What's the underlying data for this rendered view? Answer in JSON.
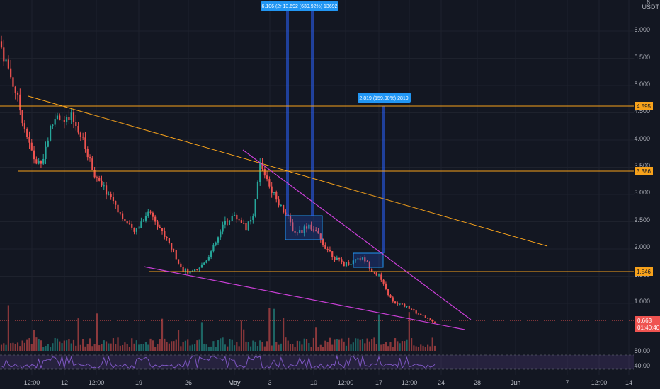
{
  "chart": {
    "currency": "USDT",
    "y_axis_ticks": [
      "6",
      "6.000",
      "5.500",
      "5.000",
      "4.500",
      "4.000",
      "3.500",
      "3.000",
      "2.500",
      "2.000",
      "1.500",
      "1.000"
    ],
    "x_axis_ticks": [
      "12:00",
      "12",
      "12:00",
      "19",
      "26",
      "May",
      "3",
      "10",
      "12:00",
      "17",
      "12:00",
      "24",
      "28",
      "Jun",
      "7",
      "12:00",
      "14"
    ],
    "rsi_ticks": [
      "80.00",
      "40.00"
    ],
    "price_badges": {
      "upper_resistance": "4.595",
      "mid_resistance": "3.386",
      "support": "1.546",
      "current_price": "0.663",
      "countdown": "01:40:40"
    },
    "measure_labels": {
      "big": "6.106 (2r 13.692 (639.92%) 13692",
      "small": "2.819 (159.90%) 2819"
    },
    "colors": {
      "background": "#131722",
      "up": "#26a69a",
      "down": "#ef5350",
      "horizontal_lines": "#f7a21b",
      "wedge": "#c93fd6",
      "measure": "#2962ff",
      "rsi": "#7e57c2"
    }
  },
  "chart_data": {
    "type": "candlestick",
    "series": [
      {
        "values": [
          5.7,
          5.3,
          4.9,
          4.4,
          3.9,
          3.55,
          3.7,
          4.2,
          4.5,
          4.3,
          4.4,
          4.2,
          3.85,
          3.5,
          3.2,
          3.05,
          2.9,
          2.65,
          2.45,
          2.3,
          2.5,
          2.7,
          2.55,
          2.3,
          2.1,
          1.85,
          1.62,
          1.56,
          1.6,
          1.75,
          1.95,
          2.2,
          2.5,
          2.6,
          2.55,
          2.4,
          2.55,
          3.55,
          3.3,
          3.0,
          2.8,
          2.55,
          2.3,
          2.35,
          2.45,
          2.3,
          2.1,
          1.95,
          1.8,
          1.72,
          1.75,
          1.85,
          1.8,
          1.62,
          1.5,
          1.25,
          1.02,
          0.98,
          0.95,
          0.85,
          0.78,
          0.72,
          0.663
        ]
      }
    ]
  }
}
